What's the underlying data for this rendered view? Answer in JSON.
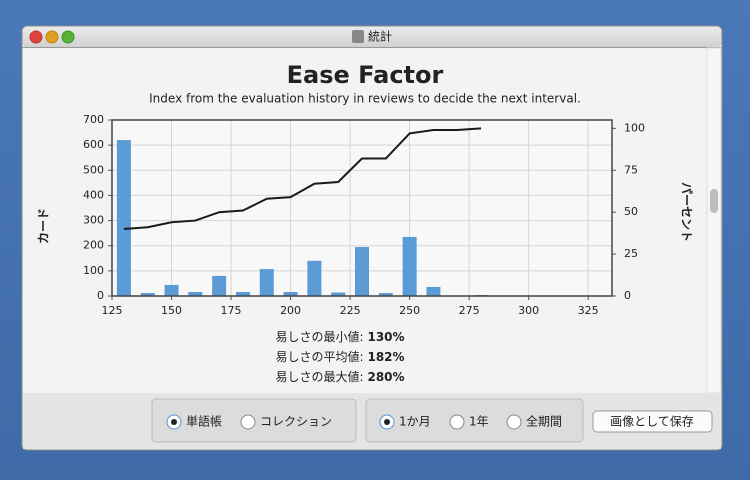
{
  "window": {
    "title": "統計"
  },
  "chart_data": {
    "type": "bar",
    "title": "Ease Factor",
    "subtitle": "Index from the evaluation history in reviews to decide the next interval.",
    "ylabel": "カード",
    "y2label": "パーセント",
    "x": [
      130,
      140,
      150,
      160,
      170,
      180,
      190,
      200,
      210,
      220,
      230,
      240,
      250,
      260,
      270,
      280
    ],
    "series": [
      {
        "color": "#5b9bd5",
        "values": [
          620,
          12,
          44,
          16,
          80,
          16,
          107,
          16,
          140,
          14,
          195,
          12,
          235,
          36,
          0,
          4
        ]
      },
      {
        "type": "line",
        "axis": "y2",
        "color": "#1a1a1a",
        "values": [
          40,
          41,
          44,
          45,
          50,
          51,
          58,
          59,
          67,
          68,
          82,
          82,
          97,
          99,
          99,
          100
        ]
      }
    ],
    "xlim": [
      125,
      335
    ],
    "xticks": [
      125,
      150,
      175,
      200,
      225,
      250,
      275,
      300,
      325
    ],
    "ylim": [
      0,
      700
    ],
    "yticks": [
      0,
      100,
      200,
      300,
      400,
      500,
      600,
      700
    ],
    "y2lim": [
      0,
      105
    ],
    "y2ticks": [
      0,
      25,
      50,
      75,
      100
    ],
    "grid": true
  },
  "stats": [
    {
      "label": "易しさの最小値:",
      "value": "130%"
    },
    {
      "label": "易しさの平均値:",
      "value": "182%"
    },
    {
      "label": "易しさの最大値:",
      "value": "280%"
    }
  ],
  "controls": {
    "groups": [
      {
        "options": [
          "単語帳",
          "コレクション"
        ],
        "selected": 0
      },
      {
        "options": [
          "1か月",
          "1年",
          "全期間"
        ],
        "selected": 0
      }
    ],
    "button": "画像として保存"
  }
}
